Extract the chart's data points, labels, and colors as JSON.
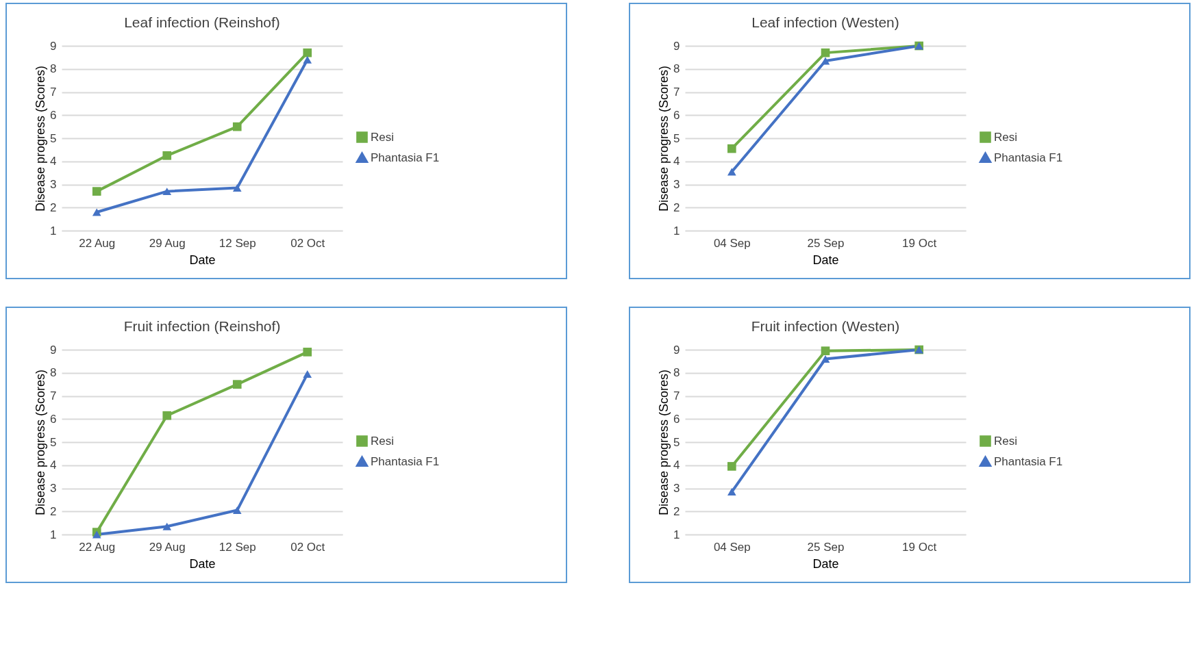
{
  "chart_data": [
    {
      "type": "line",
      "title": "Leaf infection (Reinshof)",
      "xlabel": "Date",
      "ylabel": "Disease progress (Scores)",
      "categories": [
        "22 Aug",
        "29 Aug",
        "12 Sep",
        "02 Oct"
      ],
      "ylim": [
        1,
        9
      ],
      "yticks": [
        1,
        2,
        3,
        4,
        5,
        6,
        7,
        8,
        9
      ],
      "grid": "y",
      "legend": "right",
      "series": [
        {
          "name": "Resi",
          "color": "#70ad47",
          "marker": "square",
          "values": [
            2.7,
            4.25,
            5.5,
            8.7
          ]
        },
        {
          "name": "Phantasia F1",
          "color": "#4472c4",
          "marker": "triangle",
          "values": [
            1.8,
            2.7,
            2.85,
            8.4
          ]
        }
      ]
    },
    {
      "type": "line",
      "title": "Leaf infection (Westen)",
      "xlabel": "Date",
      "ylabel": "Disease progress (Scores)",
      "categories": [
        "04 Sep",
        "25 Sep",
        "19 Oct"
      ],
      "ylim": [
        1,
        9
      ],
      "yticks": [
        1,
        2,
        3,
        4,
        5,
        6,
        7,
        8,
        9
      ],
      "grid": "y",
      "legend": "right",
      "series": [
        {
          "name": "Resi",
          "color": "#70ad47",
          "marker": "square",
          "values": [
            4.55,
            8.7,
            9
          ]
        },
        {
          "name": "Phantasia F1",
          "color": "#4472c4",
          "marker": "triangle",
          "values": [
            3.55,
            8.35,
            9
          ]
        }
      ]
    },
    {
      "type": "line",
      "title": "Fruit infection (Reinshof)",
      "xlabel": "Date",
      "ylabel": "Disease progress (Scores)",
      "categories": [
        "22 Aug",
        "29 Aug",
        "12 Sep",
        "02 Oct"
      ],
      "ylim": [
        1,
        9
      ],
      "yticks": [
        1,
        2,
        3,
        4,
        5,
        6,
        7,
        8,
        9
      ],
      "grid": "y",
      "legend": "right",
      "series": [
        {
          "name": "Resi",
          "color": "#70ad47",
          "marker": "square",
          "values": [
            1.1,
            6.15,
            7.5,
            8.9
          ]
        },
        {
          "name": "Phantasia F1",
          "color": "#4472c4",
          "marker": "triangle",
          "values": [
            1.0,
            1.35,
            2.05,
            7.95
          ]
        }
      ]
    },
    {
      "type": "line",
      "title": "Fruit infection (Westen)",
      "xlabel": "Date",
      "ylabel": "Disease progress (Scores)",
      "categories": [
        "04 Sep",
        "25 Sep",
        "19 Oct"
      ],
      "ylim": [
        1,
        9
      ],
      "yticks": [
        1,
        2,
        3,
        4,
        5,
        6,
        7,
        8,
        9
      ],
      "grid": "y",
      "legend": "right",
      "series": [
        {
          "name": "Resi",
          "color": "#70ad47",
          "marker": "square",
          "values": [
            3.95,
            8.95,
            9
          ]
        },
        {
          "name": "Phantasia F1",
          "color": "#4472c4",
          "marker": "triangle",
          "values": [
            2.85,
            8.6,
            9
          ]
        }
      ]
    }
  ]
}
